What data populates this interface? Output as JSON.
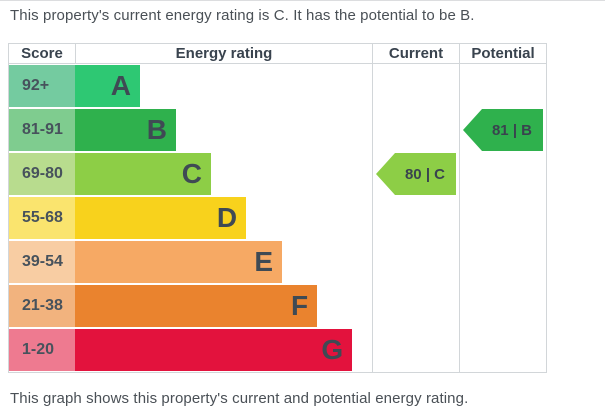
{
  "page": {
    "top_caption": "This property's current energy rating is C. It has the potential to be B.",
    "bottom_caption": "This graph shows this property's current and potential energy rating."
  },
  "table": {
    "headers": {
      "score": "Score",
      "rating": "Energy rating",
      "current": "Current",
      "potential": "Potential"
    },
    "bands": [
      {
        "score": "92+",
        "letter": "A",
        "bar_color": "#2ec873",
        "score_bg": "#74cba0",
        "width_pct": 21.9
      },
      {
        "score": "81-91",
        "letter": "B",
        "bar_color": "#2fb14d",
        "score_bg": "#7fcc8f",
        "width_pct": 34.0
      },
      {
        "score": "69-80",
        "letter": "C",
        "bar_color": "#8dce46",
        "score_bg": "#b8dc8e",
        "width_pct": 45.8
      },
      {
        "score": "55-68",
        "letter": "D",
        "bar_color": "#f8d21c",
        "score_bg": "#fae46e",
        "width_pct": 57.6
      },
      {
        "score": "39-54",
        "letter": "E",
        "bar_color": "#f6a964",
        "score_bg": "#f8cda3",
        "width_pct": 69.7
      },
      {
        "score": "21-38",
        "letter": "F",
        "bar_color": "#ea832e",
        "score_bg": "#f2b37e",
        "width_pct": 81.5
      },
      {
        "score": "1-20",
        "letter": "G",
        "bar_color": "#e3123d",
        "score_bg": "#ee7a90",
        "width_pct": 93.3
      }
    ],
    "current": {
      "label": "80 | C",
      "value": 80,
      "band": "C",
      "color": "#8dce46",
      "row_index": 2
    },
    "potential": {
      "label": "81 | B",
      "value": 81,
      "band": "B",
      "color": "#2fb14d",
      "row_index": 1
    }
  },
  "chart_data": {
    "type": "bar",
    "orientation": "horizontal",
    "title": "Energy rating",
    "categories": [
      "A",
      "B",
      "C",
      "D",
      "E",
      "F",
      "G"
    ],
    "score_ranges": [
      "92+",
      "81-91",
      "69-80",
      "55-68",
      "39-54",
      "21-38",
      "1-20"
    ],
    "values": [
      1,
      2,
      3,
      4,
      5,
      6,
      7
    ],
    "colors": [
      "#2ec873",
      "#2fb14d",
      "#8dce46",
      "#f8d21c",
      "#f6a964",
      "#ea832e",
      "#e3123d"
    ],
    "markers": [
      {
        "name": "Current",
        "value": 80,
        "band": "C"
      },
      {
        "name": "Potential",
        "value": 81,
        "band": "B"
      }
    ],
    "legend": "none",
    "grid": false
  }
}
